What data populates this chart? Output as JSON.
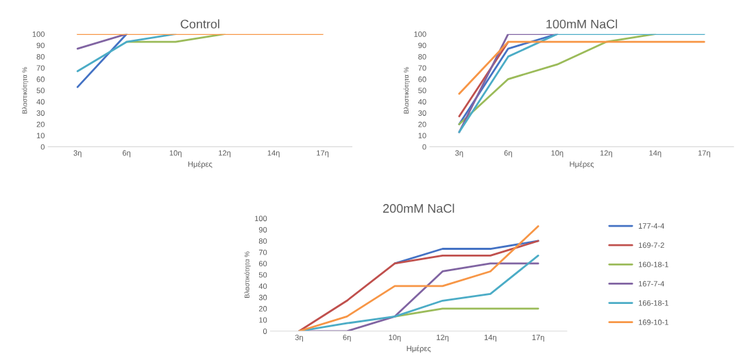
{
  "chart_data": [
    {
      "type": "line",
      "title": "Control",
      "xlabel": "Ημέρες",
      "ylabel": "Βλαστικότητα %",
      "categories": [
        "3η",
        "6η",
        "10η",
        "12η",
        "14η",
        "17η"
      ],
      "ylim": [
        0,
        100
      ],
      "yticks": [
        0,
        10,
        20,
        30,
        40,
        50,
        60,
        70,
        80,
        90,
        100
      ],
      "grid": false,
      "legend": false,
      "series": [
        {
          "color": "#4472c4",
          "values": [
            53,
            100,
            null,
            null,
            null,
            null
          ]
        },
        {
          "color": "#9bbb59",
          "values": [
            null,
            93,
            93,
            100,
            null,
            null
          ]
        },
        {
          "color": "#8064a2",
          "values": [
            87,
            100,
            null,
            null,
            null,
            null
          ]
        },
        {
          "color": "#4bacc6",
          "values": [
            67,
            93,
            100,
            null,
            null,
            null
          ]
        },
        {
          "color": "#f79646",
          "values": [
            100,
            100,
            100,
            100,
            100,
            100
          ]
        }
      ]
    },
    {
      "type": "line",
      "title": "100mM NaCl",
      "xlabel": "Ημέρες",
      "ylabel": "Βλαστικότητα %",
      "categories": [
        "3η",
        "6η",
        "10η",
        "12η",
        "14η",
        "17η"
      ],
      "ylim": [
        0,
        100
      ],
      "yticks": [
        0,
        10,
        20,
        30,
        40,
        50,
        60,
        70,
        80,
        90,
        100
      ],
      "grid": false,
      "legend": false,
      "series": [
        {
          "color": "#4472c4",
          "values": [
            20,
            87,
            100,
            null,
            null,
            null
          ]
        },
        {
          "color": "#c0504d",
          "values": [
            27,
            93,
            null,
            null,
            null,
            null
          ]
        },
        {
          "color": "#9bbb59",
          "values": [
            20,
            60,
            73,
            93,
            100,
            null
          ]
        },
        {
          "color": "#8064a2",
          "values": [
            13,
            100,
            100,
            null,
            null,
            null
          ]
        },
        {
          "color": "#4bacc6",
          "values": [
            13,
            80,
            100,
            100,
            100,
            100
          ]
        },
        {
          "color": "#f79646",
          "values": [
            47,
            93,
            93,
            93,
            93,
            93
          ]
        }
      ]
    },
    {
      "type": "line",
      "title": "200mM NaCl",
      "xlabel": "Ημέρες",
      "ylabel": "Βλαστικότητα %",
      "categories": [
        "3η",
        "6η",
        "10η",
        "12η",
        "14η",
        "17η"
      ],
      "ylim": [
        0,
        100
      ],
      "yticks": [
        0,
        10,
        20,
        30,
        40,
        50,
        60,
        70,
        80,
        90,
        100
      ],
      "grid": false,
      "legend": "right",
      "series": [
        {
          "name": "177-4-4",
          "color": "#4472c4",
          "values": [
            null,
            null,
            60,
            73,
            73,
            80
          ]
        },
        {
          "name": "169-7-2",
          "color": "#c0504d",
          "values": [
            0,
            27,
            60,
            67,
            67,
            80
          ]
        },
        {
          "name": "160-18-1",
          "color": "#9bbb59",
          "values": [
            null,
            null,
            13,
            20,
            20,
            20
          ]
        },
        {
          "name": "167-7-4",
          "color": "#8064a2",
          "values": [
            0,
            0,
            13,
            53,
            60,
            60
          ]
        },
        {
          "name": "166-18-1",
          "color": "#4bacc6",
          "values": [
            0,
            7,
            13,
            27,
            33,
            67
          ]
        },
        {
          "name": "169-10-1",
          "color": "#f79646",
          "values": [
            0,
            13,
            40,
            40,
            53,
            93
          ]
        }
      ]
    }
  ]
}
